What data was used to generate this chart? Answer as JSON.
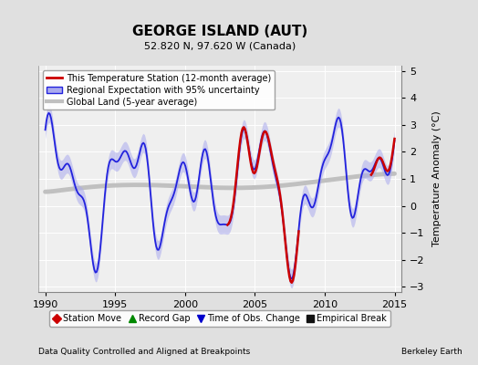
{
  "title": "GEORGE ISLAND (AUT)",
  "subtitle": "52.820 N, 97.620 W (Canada)",
  "xlabel_left": "Data Quality Controlled and Aligned at Breakpoints",
  "xlabel_right": "Berkeley Earth",
  "ylabel": "Temperature Anomaly (°C)",
  "xlim": [
    1989.5,
    2015.5
  ],
  "ylim": [
    -3.2,
    5.2
  ],
  "yticks": [
    -3,
    -2,
    -1,
    0,
    1,
    2,
    3,
    4,
    5
  ],
  "xticks": [
    1990,
    1995,
    2000,
    2005,
    2010,
    2015
  ],
  "bg_color": "#e0e0e0",
  "plot_bg_color": "#efefef",
  "regional_color": "#2222dd",
  "regional_fill_color": "#aaaaee",
  "station_color": "#cc0000",
  "global_color": "#c0c0c0",
  "legend_items": [
    {
      "label": "This Temperature Station (12-month average)"
    },
    {
      "label": "Regional Expectation with 95% uncertainty"
    },
    {
      "label": "Global Land (5-year average)"
    }
  ],
  "marker_items": [
    {
      "label": "Station Move",
      "color": "#cc0000",
      "marker": "D"
    },
    {
      "label": "Record Gap",
      "color": "#008800",
      "marker": "^"
    },
    {
      "label": "Time of Obs. Change",
      "color": "#0000cc",
      "marker": "v"
    },
    {
      "label": "Empirical Break",
      "color": "#111111",
      "marker": "s"
    }
  ],
  "figsize": [
    5.24,
    4.0
  ],
  "dpi": 100
}
